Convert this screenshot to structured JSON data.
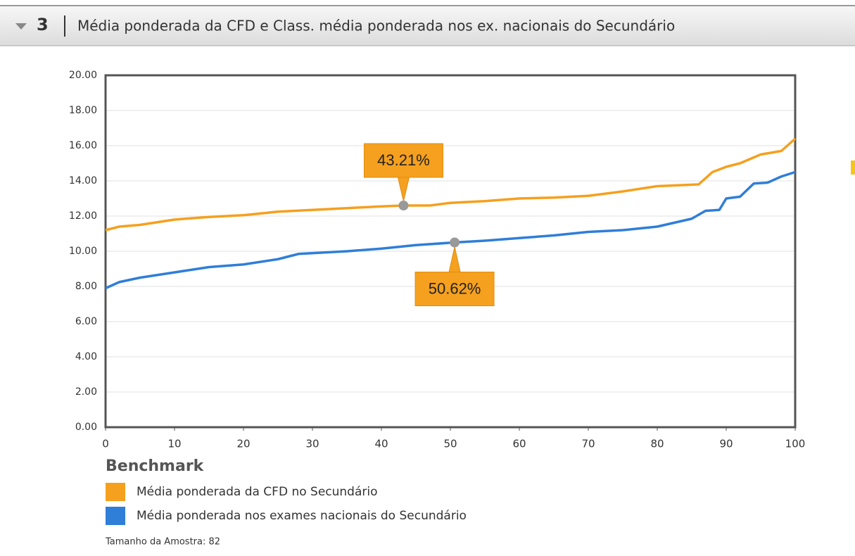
{
  "header": {
    "number": "3",
    "title": "Média ponderada da CFD e Class. média ponderada nos ex. nacionais do Secundário"
  },
  "chart_data": {
    "type": "line",
    "series": [
      {
        "name": "Média ponderada da CFD no Secundário",
        "color": "#f5a01e",
        "x": [
          0,
          2,
          5,
          10,
          15,
          20,
          25,
          30,
          35,
          40,
          43.21,
          47,
          50,
          55,
          60,
          65,
          70,
          75,
          80,
          86,
          88,
          90,
          92,
          95,
          98,
          100
        ],
        "values": [
          11.2,
          11.4,
          11.5,
          11.8,
          11.95,
          12.05,
          12.25,
          12.35,
          12.45,
          12.55,
          12.6,
          12.6,
          12.75,
          12.85,
          13.0,
          13.05,
          13.15,
          13.4,
          13.7,
          13.8,
          14.5,
          14.8,
          15.0,
          15.5,
          15.7,
          16.4
        ]
      },
      {
        "name": "Média ponderada nos exames nacionais do Secundário",
        "color": "#2f7ed8",
        "x": [
          0,
          2,
          5,
          10,
          15,
          20,
          25,
          28,
          35,
          40,
          45,
          50.62,
          55,
          60,
          65,
          70,
          75,
          80,
          85,
          87,
          89,
          90,
          92,
          94,
          96,
          98,
          100
        ],
        "values": [
          7.9,
          8.25,
          8.5,
          8.8,
          9.1,
          9.25,
          9.55,
          9.85,
          10.0,
          10.15,
          10.35,
          10.5,
          10.6,
          10.75,
          10.9,
          11.1,
          11.2,
          11.4,
          11.85,
          12.3,
          12.35,
          13.0,
          13.1,
          13.85,
          13.9,
          14.25,
          14.5
        ]
      }
    ],
    "xlim": [
      0,
      100
    ],
    "xticks": [
      0,
      10,
      20,
      30,
      40,
      50,
      60,
      70,
      80,
      90,
      100
    ],
    "ylim": [
      0,
      20
    ],
    "yticks": [
      {
        "value": 0,
        "label": "0.00"
      },
      {
        "value": 2,
        "label": "2.00"
      },
      {
        "value": 4,
        "label": "4.00"
      },
      {
        "value": 6,
        "label": "6.00"
      },
      {
        "value": 8,
        "label": "8.00"
      },
      {
        "value": 10,
        "label": "10.00"
      },
      {
        "value": 12,
        "label": "12.00"
      },
      {
        "value": 14,
        "label": "14.00"
      },
      {
        "value": 16,
        "label": "16.00"
      },
      {
        "value": 18,
        "label": "18.00"
      },
      {
        "value": 20,
        "label": "20.00"
      }
    ],
    "grid": true,
    "annotations": [
      {
        "x": 43.21,
        "y": 12.6,
        "label": "43.21%",
        "series": 0
      },
      {
        "x": 50.62,
        "y": 10.5,
        "label": "50.62%",
        "series": 1
      }
    ],
    "legend_title": "Benchmark"
  },
  "footer": "Tamanho da Amostra: 82"
}
